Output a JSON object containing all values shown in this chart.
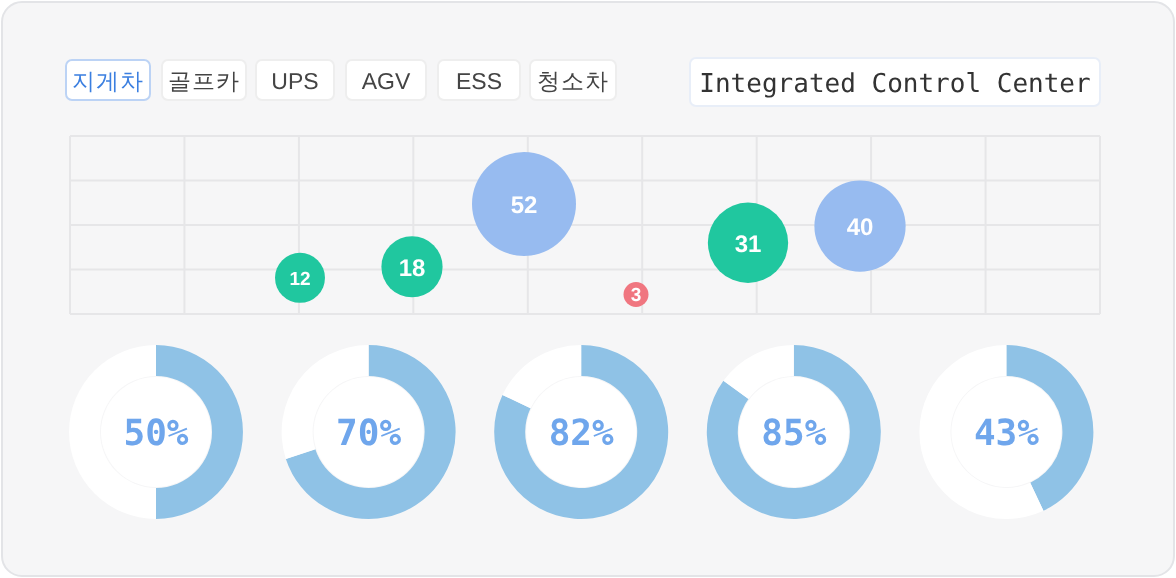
{
  "chart_data": [
    {
      "type": "other",
      "title": "Integrated Control Center",
      "annotations": [
        "지게차",
        "골프카",
        "UPS",
        "AGV",
        "ESS",
        "청소차"
      ]
    },
    {
      "type": "other",
      "annotations": [
        "12",
        "18",
        "52",
        "3",
        "31",
        "40"
      ],
      "colors": [
        "#20c79f",
        "#20c79f",
        "#97bbf0",
        "#f07680",
        "#20c79f",
        "#97bbf0"
      ]
    },
    {
      "type": "donut",
      "categories": [
        null,
        null
      ],
      "values": [
        50,
        50
      ],
      "colors": [
        "#8fc2e6",
        "#ffffff"
      ],
      "annotations": [
        "50%"
      ]
    },
    {
      "type": "donut",
      "categories": [
        null,
        null
      ],
      "values": [
        70,
        30
      ],
      "colors": [
        "#8fc2e6",
        "#ffffff"
      ],
      "annotations": [
        "70%"
      ]
    },
    {
      "type": "donut",
      "categories": [
        null,
        null
      ],
      "values": [
        82,
        18
      ],
      "colors": [
        "#8fc2e6",
        "#ffffff"
      ],
      "annotations": [
        "82%"
      ]
    },
    {
      "type": "donut",
      "categories": [
        null,
        null
      ],
      "values": [
        85,
        15
      ],
      "colors": [
        "#8fc2e6",
        "#ffffff"
      ],
      "annotations": [
        "85%"
      ]
    },
    {
      "type": "donut",
      "categories": [
        null,
        null
      ],
      "values": [
        43,
        57
      ],
      "colors": [
        "#8fc2e6",
        "#ffffff"
      ],
      "annotations": [
        "43%"
      ]
    }
  ]
}
